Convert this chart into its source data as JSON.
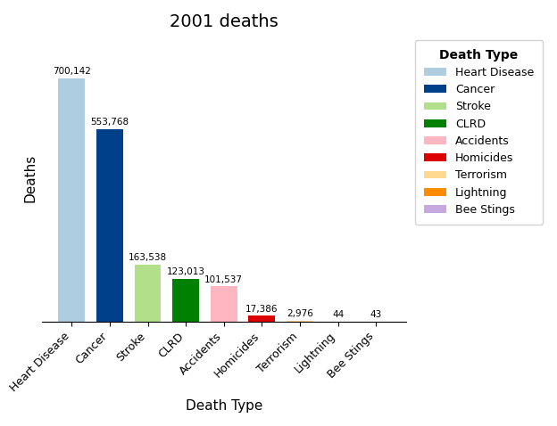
{
  "title": "2001 deaths",
  "xlabel": "Death Type",
  "ylabel": "Deaths",
  "categories": [
    "Heart Disease",
    "Cancer",
    "Stroke",
    "CLRD",
    "Accidents",
    "Homicides",
    "Terrorism",
    "Lightning",
    "Bee Stings"
  ],
  "values": [
    700142,
    553768,
    163538,
    123013,
    101537,
    17386,
    2976,
    44,
    43
  ],
  "labels": [
    "700,142",
    "553,768",
    "163,538",
    "123,013",
    "101,537",
    "17,386",
    "2,976",
    "44",
    "43"
  ],
  "colors": [
    "#aecde1",
    "#00408a",
    "#b2e08a",
    "#008000",
    "#ffb6c1",
    "#dd0000",
    "#ffd990",
    "#ff8c00",
    "#c8a8e0"
  ],
  "legend_title": "Death Type",
  "legend_entries": [
    {
      "label": "Heart Disease",
      "color": "#aecde1"
    },
    {
      "label": "Cancer",
      "color": "#00408a"
    },
    {
      "label": "Stroke",
      "color": "#b2e08a"
    },
    {
      "label": "CLRD",
      "color": "#008000"
    },
    {
      "label": "Accidents",
      "color": "#ffb6c1"
    },
    {
      "label": "Homicides",
      "color": "#dd0000"
    },
    {
      "label": "Terrorism",
      "color": "#ffd990"
    },
    {
      "label": "Lightning",
      "color": "#ff8c00"
    },
    {
      "label": "Bee Stings",
      "color": "#c8a8e0"
    }
  ],
  "background_color": "#ffffff",
  "title_fontsize": 14,
  "axis_label_fontsize": 11,
  "tick_label_fontsize": 9,
  "bar_label_fontsize": 7.5,
  "legend_fontsize": 9,
  "legend_title_fontsize": 10
}
